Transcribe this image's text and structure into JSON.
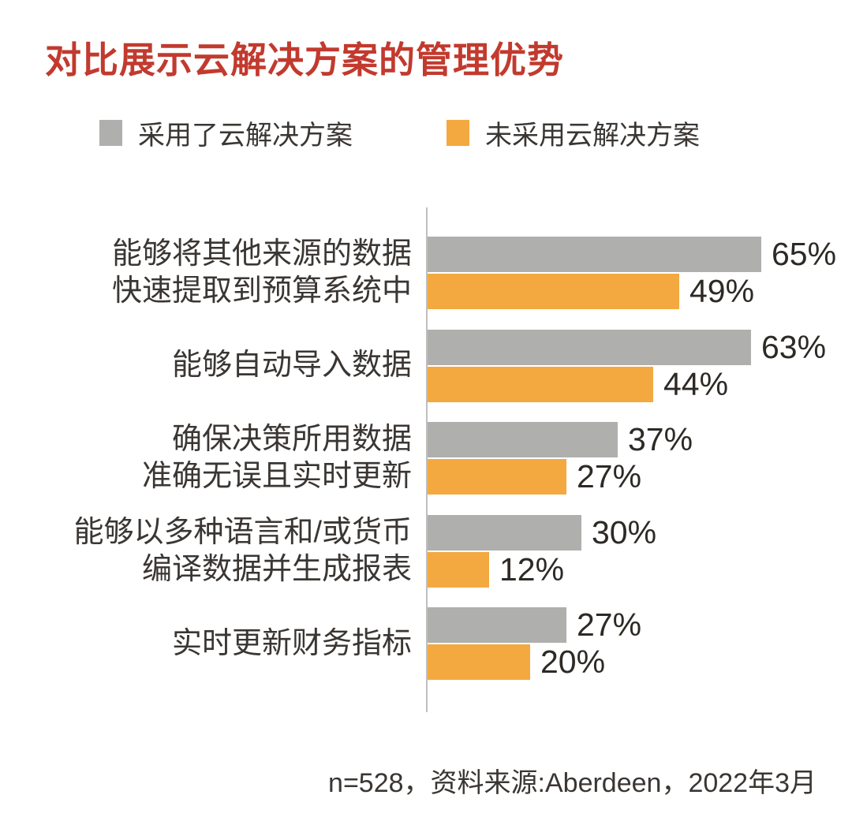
{
  "title": "对比展示云解决方案的管理优势",
  "colors": {
    "title_red": "#C23A2E",
    "adopted_gray": "#AFAFAE",
    "not_adopted_orange": "#F3A940",
    "text_dark": "#3A3633",
    "axis_gray": "#BFBEBC"
  },
  "legend": {
    "adopted_label": "采用了云解决方案",
    "not_adopted_label": "未采用云解决方案"
  },
  "footnote": "n=528，资料来源:Aberdeen，2022年3月",
  "chart_data": {
    "type": "bar",
    "orientation": "horizontal",
    "title": "对比展示云解决方案的管理优势",
    "categories": [
      [
        "能够将其他来源的数据",
        "快速提取到预算系统中"
      ],
      [
        "能够自动导入数据"
      ],
      [
        "确保决策所用数据",
        "准确无误且实时更新"
      ],
      [
        "能够以多种语言和/或货币",
        "编译数据并生成报表"
      ],
      [
        "实时更新财务指标"
      ]
    ],
    "series": [
      {
        "name": "采用了云解决方案",
        "color": "#AFAFAE",
        "values": [
          65,
          63,
          37,
          30,
          27
        ]
      },
      {
        "name": "未采用云解决方案",
        "color": "#F3A940",
        "values": [
          49,
          44,
          27,
          12,
          20
        ]
      }
    ],
    "value_suffix": "%",
    "xlim": [
      0,
      100
    ],
    "grid": false,
    "legend_position": "top",
    "value_labels": "at-bar-end",
    "source_note": "n=528，资料来源:Aberdeen，2022年3月"
  }
}
